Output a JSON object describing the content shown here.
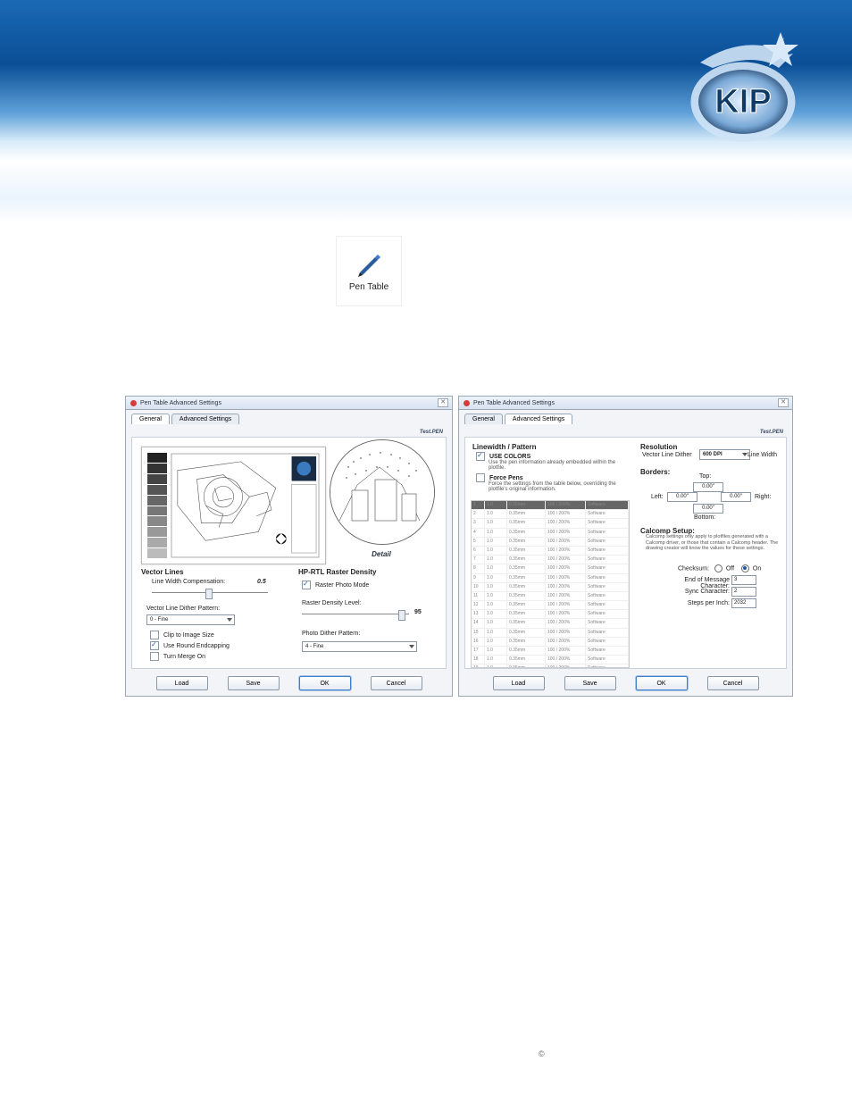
{
  "header": {
    "logo_text": "KIP"
  },
  "pen_icon": {
    "label": "Pen Table"
  },
  "dialog1": {
    "title": "Pen Table Advanced Settings",
    "tabs": [
      "General",
      "Advanced Settings"
    ],
    "active_tab": 0,
    "testpen": "Test.PEN",
    "detail_label": "Detail",
    "vector_lines": {
      "heading": "Vector Lines",
      "lwc_label": "Line Width Compensation:",
      "lwc_value": "0.5",
      "dither_label": "Vector Line Dither Pattern:",
      "dither_value": "0 - Fine",
      "clip_label": "Clip to Image Size",
      "clip_checked": false,
      "round_label": "Use Round Endcapping",
      "round_checked": true,
      "merge_label": "Turn Merge On",
      "merge_checked": false
    },
    "raster": {
      "heading": "HP-RTL Raster Density",
      "photo_label": "Raster Photo Mode",
      "photo_checked": true,
      "level_label": "Raster Density Level:",
      "level_value": "95",
      "pd_label": "Photo Dither Pattern:",
      "pd_value": "4 - Fine"
    },
    "buttons": {
      "load": "Load",
      "save": "Save",
      "ok": "OK",
      "cancel": "Cancel"
    }
  },
  "dialog2": {
    "title": "Pen Table Advanced Settings",
    "tabs": [
      "General",
      "Advanced Settings"
    ],
    "active_tab": 1,
    "testpen": "Test.PEN",
    "linewidth": {
      "heading": "Linewidth / Pattern",
      "use_colors_checked": true,
      "use_colors_label": "USE COLORS",
      "use_colors_sub": "Use the pen information already embedded within the plotfile.",
      "force_checked": false,
      "force_label": "Force Pens",
      "force_sub": "Force the settings from the table below, overriding the plotfile's original information."
    },
    "resolution": {
      "heading": "Resolution",
      "vld_label": "Vector Line Dither",
      "vld_value": "600 DPI",
      "lw_label": "Line Width"
    },
    "borders": {
      "heading": "Borders:",
      "top_label": "Top:",
      "bottom_label": "Bottom:",
      "left_label": "Left:",
      "right_label": "Right:",
      "top": "0.00\"",
      "bottom": "0.00\"",
      "left": "0.00\"",
      "right": "0.00\""
    },
    "calcomp": {
      "heading": "Calcomp Setup:",
      "note": "Calcomp settings only apply to plotfiles generated with a Calcomp driver, or those that contain a Calcomp header. The drawing creator will know the values for these settings.",
      "checksum_label": "Checksum:",
      "off_label": "Off",
      "on_label": "On",
      "on_selected": true,
      "eom_label": "End of Message Character:",
      "eom_value": "3",
      "sync_label": "Sync Character:",
      "sync_value": "2",
      "spi_label": "Steps per Inch:",
      "spi_value": "2032"
    },
    "table": {
      "row_count": 20,
      "c2_sample": "1.0",
      "c3_sample": "0.35mm",
      "c4_sample": "100 / 200%",
      "c5_sample": "Software"
    },
    "buttons": {
      "load": "Load",
      "save": "Save",
      "ok": "OK",
      "cancel": "Cancel"
    }
  },
  "grayscale_steps": [
    "#222",
    "#333",
    "#444",
    "#555",
    "#666",
    "#777",
    "#888",
    "#999",
    "#aaa",
    "#bbb"
  ],
  "colors": {
    "header_top": "#1b69b5",
    "header_mid": "#0a4f96",
    "dialog_bg": "#f2f4f8",
    "primary_border": "#3f7ecb"
  },
  "footer": {
    "copyright": "©"
  }
}
